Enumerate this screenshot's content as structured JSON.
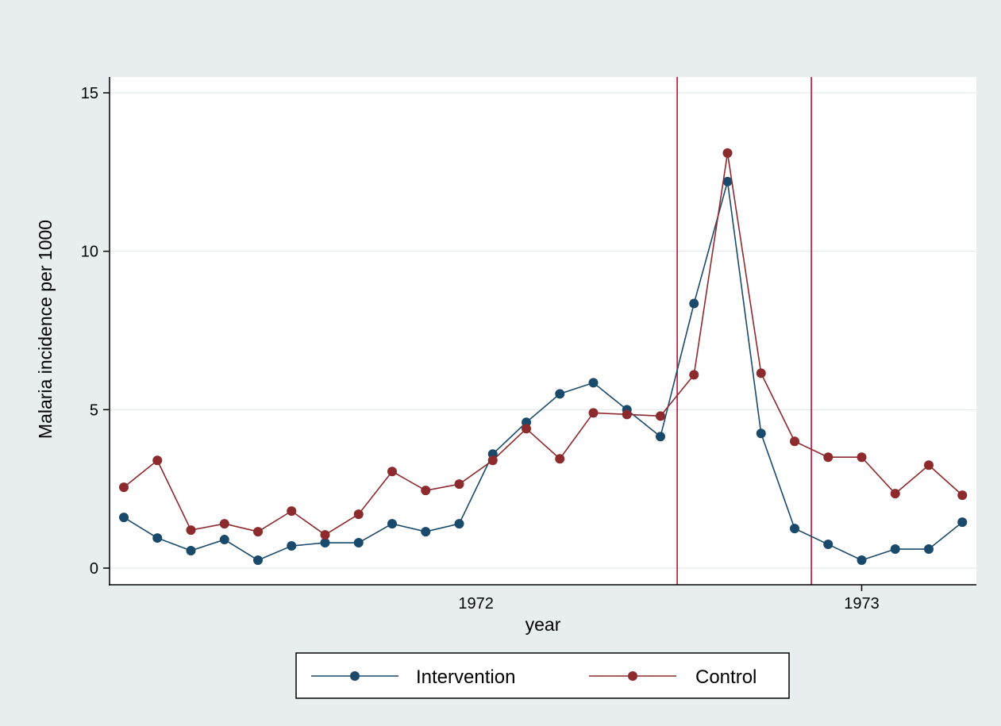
{
  "chart_data": {
    "type": "line",
    "title": "",
    "xlabel": "year",
    "ylabel": "Malaria incidence per 1000",
    "ylim": [
      0,
      15
    ],
    "yticks": [
      "0",
      "5",
      "10",
      "15"
    ],
    "xticks": [
      {
        "label": "1972",
        "index": 10.5,
        "tick_mark": false
      },
      {
        "label": "1973",
        "index": 22,
        "tick_mark": true
      }
    ],
    "grid": true,
    "legend_position": "bottom",
    "vertical_reference_lines": [
      16.5,
      20.5
    ],
    "colors": {
      "outer_background": "#e8edf0",
      "plot_background": "#ffffff",
      "gridline": "#e2e9ec",
      "reference_line": "#c0284a",
      "Intervention": "#1a4a6b",
      "Control": "#8c2a2e"
    },
    "series": [
      {
        "name": "Intervention",
        "values": [
          1.6,
          0.95,
          0.55,
          0.9,
          0.25,
          0.7,
          0.8,
          0.8,
          1.4,
          1.15,
          1.4,
          3.6,
          4.6,
          5.5,
          5.85,
          5.0,
          4.15,
          8.35,
          12.2,
          4.25,
          1.25,
          0.75,
          0.25,
          0.6,
          0.6,
          1.45
        ]
      },
      {
        "name": "Control",
        "values": [
          2.55,
          3.4,
          1.2,
          1.4,
          1.15,
          1.8,
          1.05,
          1.7,
          3.05,
          2.45,
          2.65,
          3.4,
          4.4,
          3.45,
          4.9,
          4.85,
          4.8,
          6.1,
          13.1,
          6.15,
          4.0,
          3.5,
          3.5,
          2.35,
          3.25,
          2.3
        ]
      }
    ]
  }
}
